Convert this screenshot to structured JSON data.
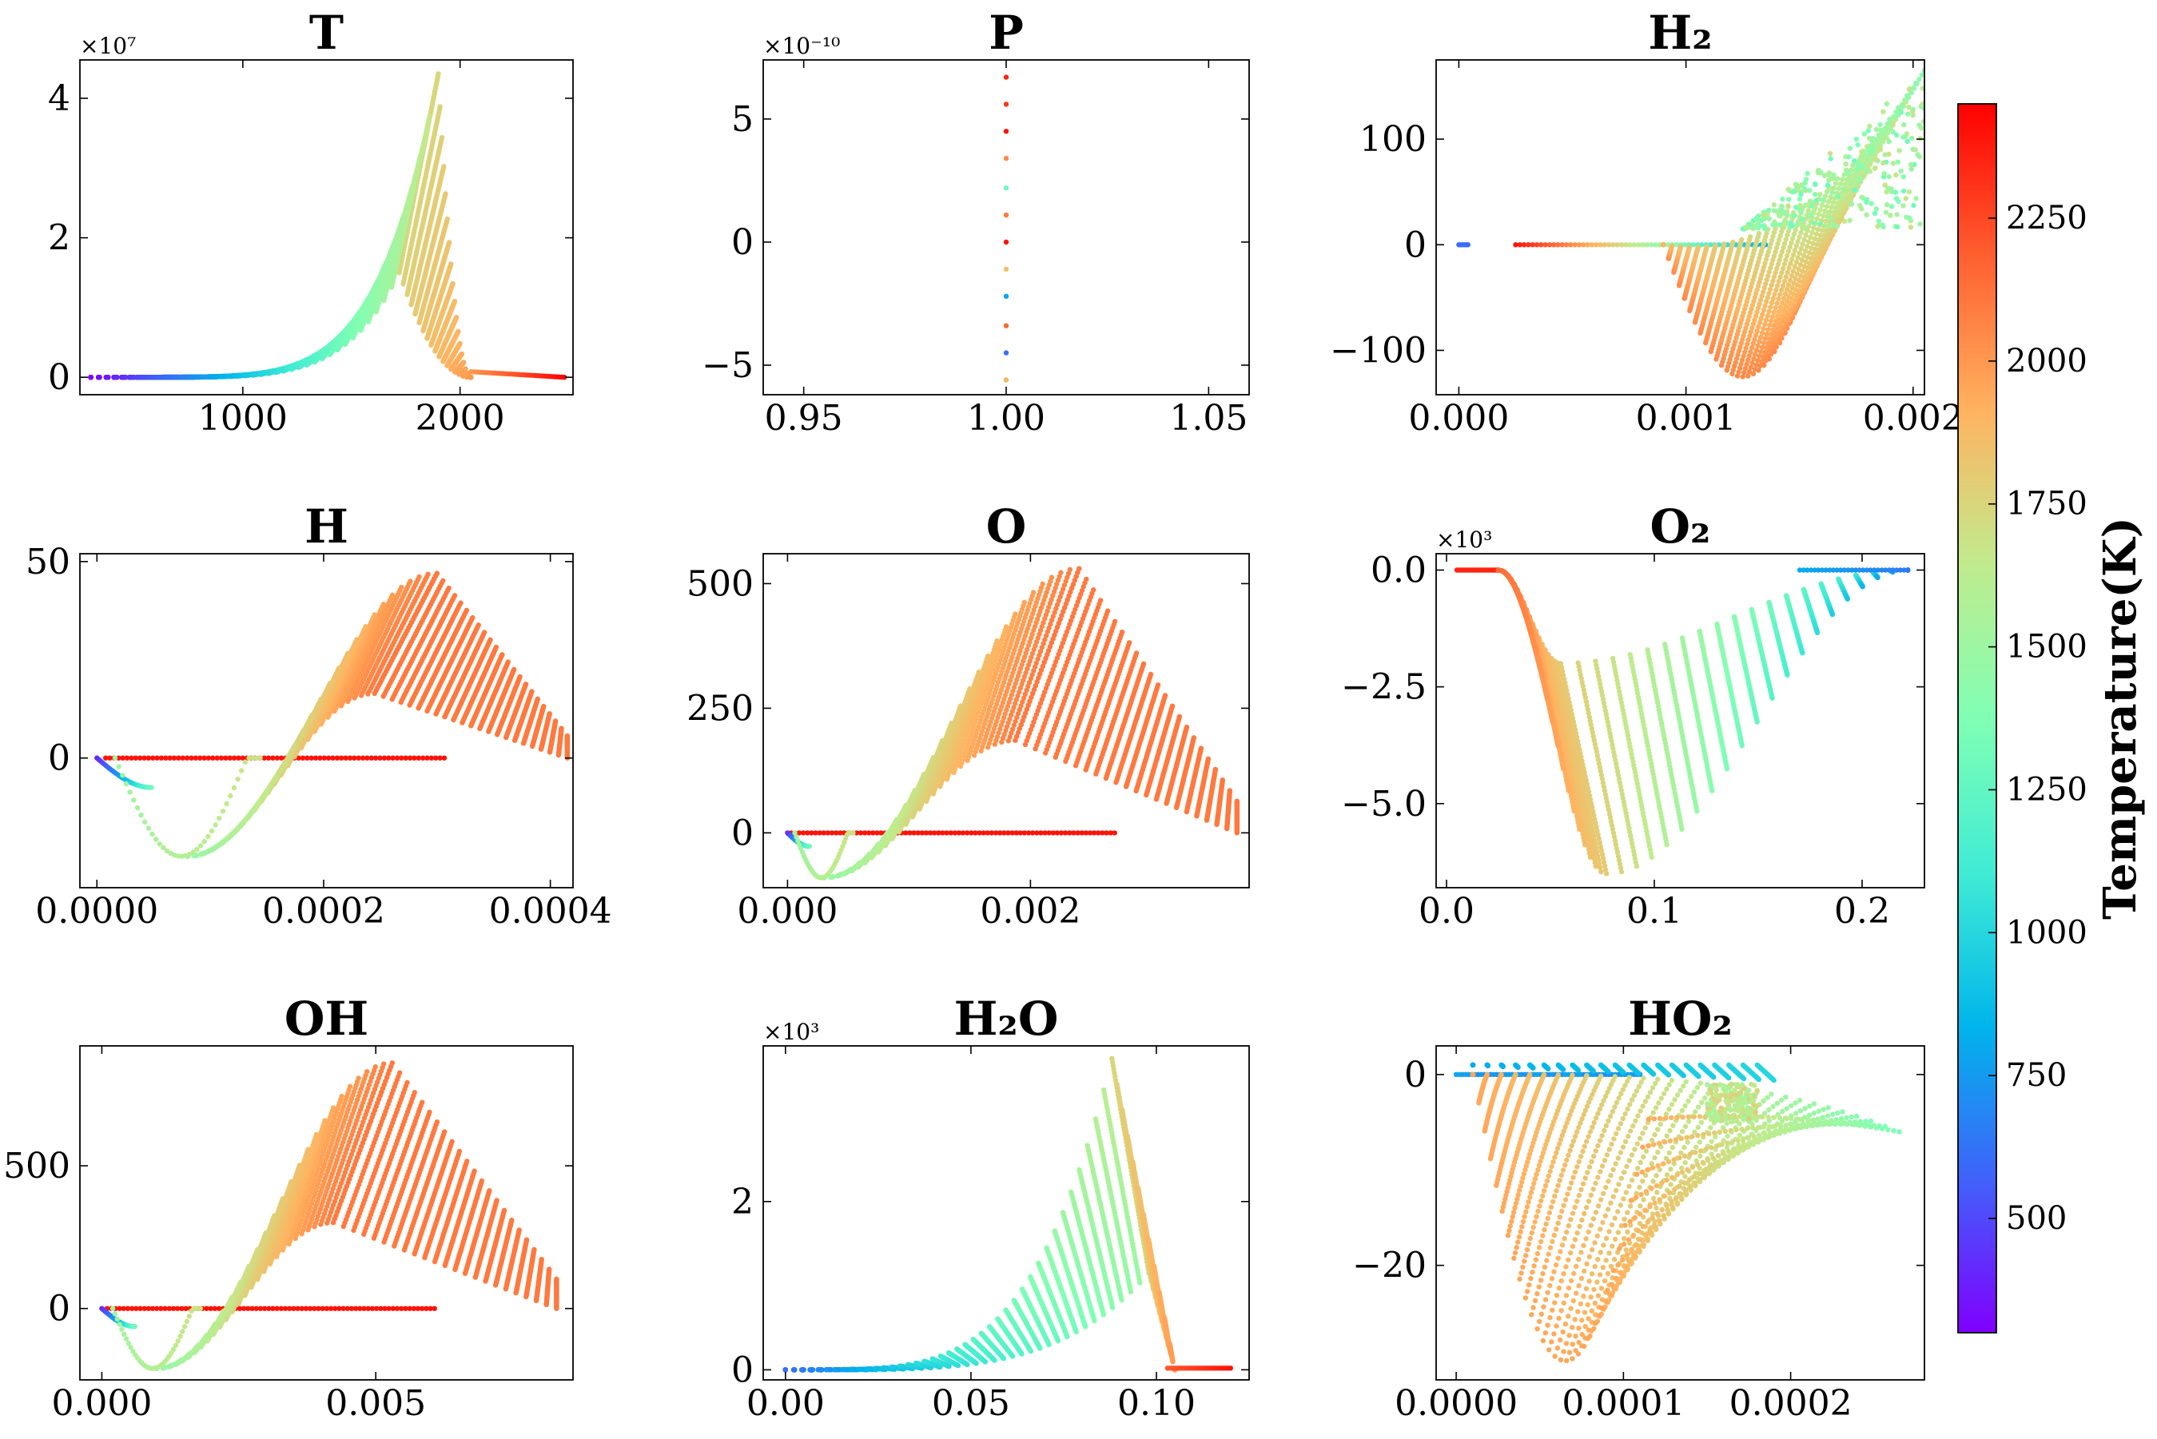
{
  "figure": {
    "background": "#ffffff",
    "axis_color": "#000000"
  },
  "colorbar": {
    "label": "Temperature(K)",
    "range": [
      300,
      2450
    ],
    "ticks": [
      500,
      750,
      1000,
      1250,
      1500,
      1750,
      2000,
      2250
    ],
    "tick_labels": [
      "500",
      "750",
      "1000",
      "1250",
      "1500",
      "1750",
      "2000",
      "2250"
    ],
    "colormap": "rainbow",
    "colors": [
      "#8000ff",
      "#4062fa",
      "#00b5eb",
      "#40ecd4",
      "#80ffb4",
      "#c0eb8d",
      "#ffb360",
      "#ff6030",
      "#ff0000"
    ]
  },
  "chart_data": [
    {
      "type": "scatter",
      "title": "T",
      "multiplier": "×10^7",
      "xlim": [
        250,
        2520
      ],
      "ylim": [
        -0.25,
        4.55
      ],
      "xticks": [
        1000,
        2000
      ],
      "xtick_labels": [
        "1000",
        "2000"
      ],
      "yticks": [
        0,
        2,
        4
      ],
      "ytick_labels": [
        "0",
        "2",
        "4"
      ],
      "shape": {
        "kind": "pulse_band",
        "x0": 300,
        "xpeak": 1900,
        "xend": 2480,
        "ypeak": 4.35,
        "ylower_peak": 1.5,
        "xlower_peak": 1720
      },
      "color_by": "Temperature(K)"
    },
    {
      "type": "scatter",
      "title": "P",
      "multiplier": "×10^-10",
      "xlim": [
        0.94,
        1.06
      ],
      "ylim": [
        -6.2,
        7.4
      ],
      "xticks": [
        0.95,
        1.0,
        1.05
      ],
      "xtick_labels": [
        "0.95",
        "1.00",
        "1.05"
      ],
      "yticks": [
        -5,
        0,
        5
      ],
      "ytick_labels": [
        "−5",
        "0",
        "5"
      ],
      "points": [
        {
          "x": 1.0,
          "y": 6.7,
          "T": 2350
        },
        {
          "x": 1.0,
          "y": 5.6,
          "T": 2300
        },
        {
          "x": 1.0,
          "y": 4.5,
          "T": 2400
        },
        {
          "x": 1.0,
          "y": 3.4,
          "T": 2050
        },
        {
          "x": 1.0,
          "y": 2.2,
          "T": 1300
        },
        {
          "x": 1.0,
          "y": 1.1,
          "T": 2100
        },
        {
          "x": 1.0,
          "y": 0.0,
          "T": 2400
        },
        {
          "x": 1.0,
          "y": -1.1,
          "T": 1850
        },
        {
          "x": 1.0,
          "y": -2.2,
          "T": 800
        },
        {
          "x": 1.0,
          "y": -3.4,
          "T": 2150
        },
        {
          "x": 1.0,
          "y": -4.5,
          "T": 600
        },
        {
          "x": 1.0,
          "y": -5.6,
          "T": 1100
        },
        {
          "x": 1.0,
          "y": -5.6,
          "T": 1900
        }
      ],
      "color_by": "Temperature(K)"
    },
    {
      "type": "scatter",
      "title": "H2",
      "multiplier": "",
      "xlim": [
        -0.0001,
        0.00205
      ],
      "ylim": [
        -142,
        175
      ],
      "xticks": [
        0.0,
        0.001,
        0.002
      ],
      "xtick_labels": [
        "0.000",
        "0.001",
        "0.002"
      ],
      "yticks": [
        -100,
        0,
        100
      ],
      "ytick_labels": [
        "−100",
        "0",
        "100"
      ],
      "shape": {
        "kind": "h2_fan",
        "fan_center": [
          0.00125,
          0
        ],
        "ymax": 165,
        "ymin": -125,
        "x_ymin": 0.00158,
        "x_ymax": 0.00205
      },
      "color_by": "Temperature(K)"
    },
    {
      "type": "scatter",
      "title": "H",
      "multiplier": "",
      "xlim": [
        -1.5e-05,
        0.00042
      ],
      "ylim": [
        -33,
        52
      ],
      "xticks": [
        0.0,
        0.0002,
        0.0004
      ],
      "xtick_labels": [
        "0.0000",
        "0.0002",
        "0.0004"
      ],
      "yticks": [
        0,
        50
      ],
      "ytick_labels": [
        "0",
        "50"
      ],
      "shape": {
        "kind": "radical_fan",
        "dip": [
          8e-05,
          -25
        ],
        "peak": [
          0.0003,
          47
        ],
        "xend": 0.000415
      },
      "color_by": "Temperature(K)"
    },
    {
      "type": "scatter",
      "title": "O",
      "multiplier": "",
      "xlim": [
        -0.0002,
        0.0038
      ],
      "ylim": [
        -110,
        560
      ],
      "xticks": [
        0.0,
        0.002
      ],
      "xtick_labels": [
        "0.000",
        "0.002"
      ],
      "yticks": [
        0,
        250,
        500
      ],
      "ytick_labels": [
        "0",
        "250",
        "500"
      ],
      "shape": {
        "kind": "radical_fan",
        "dip": [
          0.0003,
          -90
        ],
        "peak": [
          0.0024,
          530
        ],
        "xend": 0.0037
      },
      "color_by": "Temperature(K)"
    },
    {
      "type": "scatter",
      "title": "O2",
      "multiplier": "×10^3",
      "xlim": [
        -0.005,
        0.23
      ],
      "ylim": [
        -6.8,
        0.35
      ],
      "xticks": [
        0.0,
        0.1,
        0.2
      ],
      "xtick_labels": [
        "0.0",
        "0.1",
        "0.2"
      ],
      "yticks": [
        -5.0,
        -2.5,
        0.0
      ],
      "ytick_labels": [
        "−5.0",
        "−2.5",
        "0.0"
      ],
      "shape": {
        "kind": "o2_well",
        "xmin": 0.077,
        "ymin": -6.5,
        "xstart": 0.005,
        "xend": 0.222
      },
      "color_by": "Temperature(K)"
    },
    {
      "type": "scatter",
      "title": "OH",
      "multiplier": "",
      "xlim": [
        -0.0004,
        0.0086
      ],
      "ylim": [
        -250,
        920
      ],
      "xticks": [
        0.0,
        0.005
      ],
      "xtick_labels": [
        "0.000",
        "0.005"
      ],
      "yticks": [
        0,
        500
      ],
      "ytick_labels": [
        "0",
        "500"
      ],
      "shape": {
        "kind": "radical_fan",
        "dip": [
          0.001,
          -210
        ],
        "peak": [
          0.0053,
          860
        ],
        "xend": 0.0083
      },
      "color_by": "Temperature(K)"
    },
    {
      "type": "scatter",
      "title": "H2O",
      "multiplier": "×10^3",
      "xlim": [
        -0.006,
        0.125
      ],
      "ylim": [
        -0.12,
        3.85
      ],
      "xticks": [
        0.0,
        0.05,
        0.1
      ],
      "xtick_labels": [
        "0.00",
        "0.05",
        "0.10"
      ],
      "yticks": [
        0,
        2
      ],
      "ytick_labels": [
        "0",
        "2"
      ],
      "shape": {
        "kind": "h2o_band",
        "xpeak": 0.088,
        "ypeak": 3.7,
        "ylower": 1.15,
        "xend": 0.12
      },
      "color_by": "Temperature(K)"
    },
    {
      "type": "scatter",
      "title": "HO2",
      "multiplier": "",
      "xlim": [
        -1.2e-05,
        0.00028
      ],
      "ylim": [
        -32,
        3
      ],
      "xticks": [
        0.0,
        0.0001,
        0.0002
      ],
      "xtick_labels": [
        "0.0000",
        "0.0001",
        "0.0002"
      ],
      "yticks": [
        -20,
        0
      ],
      "ytick_labels": [
        "−20",
        "0"
      ],
      "shape": {
        "kind": "ho2_fan",
        "xmin": 0.00012,
        "ymin": -30,
        "xend": 0.00027
      },
      "color_by": "Temperature(K)"
    }
  ]
}
